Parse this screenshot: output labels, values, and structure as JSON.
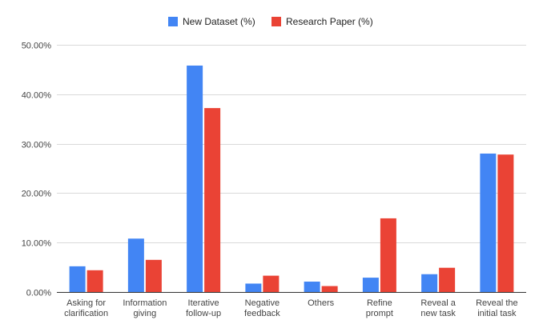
{
  "chart_data": {
    "type": "bar",
    "title": "",
    "xlabel": "",
    "ylabel": "",
    "ylim": [
      0,
      50
    ],
    "y_ticks": [
      {
        "value": 0,
        "label": "0.00%"
      },
      {
        "value": 10,
        "label": "10.00%"
      },
      {
        "value": 20,
        "label": "20.00%"
      },
      {
        "value": 30,
        "label": "30.00%"
      },
      {
        "value": 40,
        "label": "40.00%"
      },
      {
        "value": 50,
        "label": "50.00%"
      }
    ],
    "categories": [
      [
        "Asking for",
        "clarification"
      ],
      [
        "Information",
        "giving"
      ],
      [
        "Iterative",
        "follow-up"
      ],
      [
        "Negative",
        "feedback"
      ],
      [
        "Others"
      ],
      [
        "Refine",
        "prompt"
      ],
      [
        "Reveal a",
        "new task"
      ],
      [
        "Reveal the",
        "initial task"
      ]
    ],
    "series": [
      {
        "name": "New Dataset (%)",
        "color": "#4285f4",
        "values": [
          5.2,
          10.8,
          45.8,
          1.7,
          2.1,
          2.9,
          3.6,
          28.0
        ]
      },
      {
        "name": "Research Paper (%)",
        "color": "#ea4335",
        "values": [
          4.4,
          6.5,
          37.2,
          3.3,
          1.2,
          14.9,
          4.9,
          27.8
        ]
      }
    ],
    "grid": true,
    "legend_position": "top-center"
  }
}
